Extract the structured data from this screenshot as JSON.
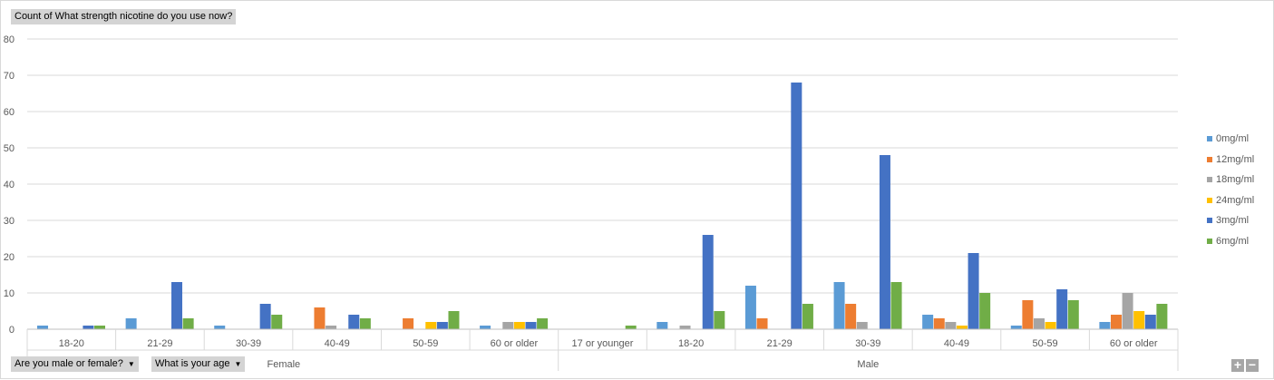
{
  "pivot_fields": {
    "values_field": "Count of What strength nicotine do you use now?",
    "axis_fields": [
      "Are you male or female?",
      "What is your age"
    ]
  },
  "zoom_controls": {
    "expand": "+",
    "collapse": "−"
  },
  "colors": {
    "0mg/ml": "#5b9bd5",
    "12mg/ml": "#ed7d31",
    "18mg/ml": "#a5a5a5",
    "24mg/ml": "#ffc000",
    "3mg/ml": "#4472c4",
    "6mg/ml": "#70ad47"
  },
  "chart_data": {
    "type": "bar",
    "orientation": "vertical",
    "title": "",
    "xlabel": "",
    "ylabel": "",
    "ylim": [
      0,
      80
    ],
    "yticks": [
      0,
      10,
      20,
      30,
      40,
      50,
      60,
      70,
      80
    ],
    "grid": true,
    "legend_position": "right",
    "legend_order": [
      "0mg/ml",
      "12mg/ml",
      "18mg/ml",
      "24mg/ml",
      "3mg/ml",
      "6mg/ml"
    ],
    "groups": [
      {
        "name": "Female",
        "categories": [
          "18-20",
          "21-29",
          "30-39",
          "40-49",
          "50-59",
          "60 or older"
        ]
      },
      {
        "name": "Male",
        "categories": [
          "17 or younger",
          "18-20",
          "21-29",
          "30-39",
          "40-49",
          "50-59",
          "60 or older"
        ]
      }
    ],
    "categories": [
      "18-20",
      "21-29",
      "30-39",
      "40-49",
      "50-59",
      "60 or older",
      "17 or younger",
      "18-20",
      "21-29",
      "30-39",
      "40-49",
      "50-59",
      "60 or older"
    ],
    "series": [
      {
        "name": "0mg/ml",
        "values": [
          1,
          3,
          1,
          0,
          0,
          1,
          0,
          2,
          12,
          13,
          4,
          1,
          2
        ]
      },
      {
        "name": "12mg/ml",
        "values": [
          0,
          0,
          0,
          6,
          3,
          0,
          0,
          0,
          3,
          7,
          3,
          8,
          4
        ]
      },
      {
        "name": "18mg/ml",
        "values": [
          0,
          0,
          0,
          1,
          0,
          2,
          0,
          1,
          0,
          2,
          2,
          3,
          10
        ]
      },
      {
        "name": "24mg/ml",
        "values": [
          0,
          0,
          0,
          0,
          2,
          2,
          0,
          0,
          0,
          0,
          1,
          2,
          5
        ]
      },
      {
        "name": "3mg/ml",
        "values": [
          1,
          13,
          7,
          4,
          2,
          2,
          0,
          26,
          68,
          48,
          21,
          11,
          4
        ]
      },
      {
        "name": "6mg/ml",
        "values": [
          1,
          3,
          4,
          3,
          5,
          3,
          1,
          5,
          7,
          13,
          10,
          8,
          7
        ]
      }
    ]
  }
}
